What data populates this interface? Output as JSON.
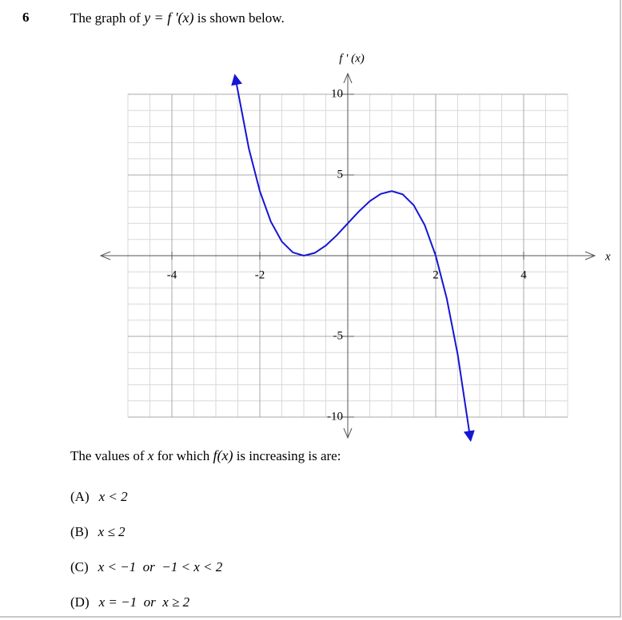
{
  "number": "6",
  "prompt": {
    "before": "The graph of",
    "math": "y = f '(x)",
    "after": "is shown below."
  },
  "chart_data": {
    "type": "line",
    "x_label": "x",
    "y_label": "f ' (x)",
    "xlim": [
      -5,
      5
    ],
    "ylim": [
      -10,
      10
    ],
    "xticks": [
      -4,
      -2,
      2,
      4
    ],
    "yticks": [
      10,
      5,
      -5,
      -10
    ],
    "grid": true,
    "series": [
      {
        "color": "#1515d6",
        "x": [
          -2.55,
          -2.25,
          -2,
          -1.75,
          -1.5,
          -1.25,
          -1,
          -0.75,
          -0.5,
          -0.25,
          0,
          0.25,
          0.5,
          0.75,
          1,
          1.25,
          1.5,
          1.75,
          2,
          2.25,
          2.5,
          2.78
        ],
        "values": [
          10.93,
          6.641,
          4,
          2.109,
          0.875,
          0.203,
          0,
          0.172,
          0.625,
          1.266,
          2,
          2.734,
          3.375,
          3.828,
          4,
          3.797,
          3.125,
          1.891,
          0,
          -2.641,
          -6.125,
          -11.2
        ]
      }
    ]
  },
  "question": {
    "before": "The values of",
    "var": "x",
    "middle": "for which",
    "math": "f(x)",
    "after": "is increasing is are:"
  },
  "options": [
    {
      "label": "(A)",
      "text": "x < 2"
    },
    {
      "label": "(B)",
      "text": "x ≤ 2"
    },
    {
      "label": "(C)",
      "text": "x < −1  or  −1 < x < 2"
    },
    {
      "label": "(D)",
      "text": "x = −1  or  x ≥ 2"
    }
  ]
}
